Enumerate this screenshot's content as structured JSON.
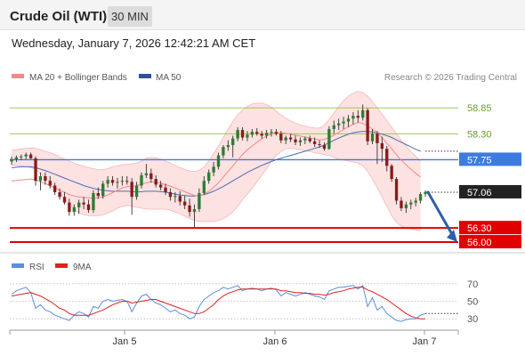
{
  "header": {
    "title": "Crude Oil (WTI)",
    "timeframe": "30 MIN"
  },
  "timestamp": "Wednesday, January 7, 2026 12:42:21 AM CET",
  "legend": {
    "items": [
      {
        "label": "MA 20 + Bollinger Bands",
        "color": "#f08a8a"
      },
      {
        "label": "MA 50",
        "color": "#2c4f9e"
      }
    ],
    "credit": "Research © 2026 Trading Central"
  },
  "colors": {
    "up": "#2e7d32",
    "down": "#8b1a1a",
    "wick": "#333333",
    "band_fill": "#fde2e2",
    "ma20": "#f08a8a",
    "ma50": "#4a6cb3",
    "resistance": "#8cc63f",
    "pivot": "#3d7be0",
    "support": "#e00000",
    "rsi": "#5b8de0",
    "rsi_ma": "#e02020",
    "arrow": "#2f5da8"
  },
  "chart_data": [
    {
      "type": "candlestick",
      "name": "price",
      "ylim": [
        55.85,
        59.25
      ],
      "x_ticks": [
        "Jan 5",
        "Jan 6",
        "Jan 7"
      ],
      "levels": [
        {
          "label": "58.85",
          "value": 58.85,
          "kind": "resistance"
        },
        {
          "label": "58.30",
          "value": 58.3,
          "kind": "resistance"
        },
        {
          "label": "57.75",
          "value": 57.75,
          "kind": "pivot"
        },
        {
          "label": "57.06",
          "value": 57.06,
          "kind": "last"
        },
        {
          "label": "56.30",
          "value": 56.3,
          "kind": "support"
        },
        {
          "label": "56.00",
          "value": 56.0,
          "kind": "support"
        }
      ],
      "ohlc": [
        [
          57.71,
          57.82,
          57.64,
          57.76
        ],
        [
          57.76,
          57.84,
          57.7,
          57.8
        ],
        [
          57.8,
          57.86,
          57.74,
          57.82
        ],
        [
          57.82,
          57.9,
          57.76,
          57.86
        ],
        [
          57.86,
          57.9,
          57.76,
          57.78
        ],
        [
          57.78,
          57.82,
          57.2,
          57.3
        ],
        [
          57.3,
          57.48,
          57.1,
          57.4
        ],
        [
          57.4,
          57.48,
          57.22,
          57.3
        ],
        [
          57.3,
          57.4,
          57.14,
          57.2
        ],
        [
          57.2,
          57.26,
          57.0,
          57.06
        ],
        [
          57.06,
          57.14,
          56.9,
          56.96
        ],
        [
          56.96,
          57.06,
          56.8,
          56.84
        ],
        [
          56.84,
          56.92,
          56.56,
          56.64
        ],
        [
          56.64,
          56.8,
          56.56,
          56.74
        ],
        [
          56.74,
          56.9,
          56.6,
          56.84
        ],
        [
          56.84,
          56.96,
          56.7,
          56.8
        ],
        [
          56.8,
          56.9,
          56.62,
          56.68
        ],
        [
          56.68,
          57.1,
          56.62,
          57.04
        ],
        [
          57.04,
          57.16,
          56.92,
          56.98
        ],
        [
          56.98,
          57.3,
          56.92,
          57.24
        ],
        [
          57.24,
          57.4,
          57.16,
          57.32
        ],
        [
          57.32,
          57.4,
          57.2,
          57.26
        ],
        [
          57.26,
          57.36,
          57.14,
          57.28
        ],
        [
          57.28,
          57.4,
          57.2,
          57.3
        ],
        [
          57.3,
          57.4,
          57.22,
          57.28
        ],
        [
          57.28,
          57.36,
          56.58,
          56.96
        ],
        [
          56.96,
          57.28,
          56.9,
          57.2
        ],
        [
          57.2,
          57.48,
          57.14,
          57.42
        ],
        [
          57.42,
          57.66,
          57.36,
          57.46
        ],
        [
          57.46,
          57.56,
          57.26,
          57.34
        ],
        [
          57.34,
          57.42,
          57.16,
          57.22
        ],
        [
          57.22,
          57.3,
          57.1,
          57.16
        ],
        [
          57.16,
          57.24,
          57.0,
          57.06
        ],
        [
          57.06,
          57.14,
          56.88,
          56.96
        ],
        [
          56.96,
          57.06,
          56.84,
          56.98
        ],
        [
          56.98,
          57.08,
          56.78,
          56.86
        ],
        [
          56.86,
          56.98,
          56.7,
          56.78
        ],
        [
          56.78,
          56.92,
          56.54,
          56.64
        ],
        [
          56.64,
          56.8,
          56.32,
          56.7
        ],
        [
          56.7,
          57.14,
          56.64,
          57.04
        ],
        [
          57.04,
          57.4,
          57.0,
          57.3
        ],
        [
          57.3,
          57.54,
          57.24,
          57.48
        ],
        [
          57.48,
          57.7,
          57.4,
          57.6
        ],
        [
          57.6,
          57.9,
          57.54,
          57.84
        ],
        [
          57.84,
          58.06,
          57.78,
          58.02
        ],
        [
          58.02,
          58.16,
          57.94,
          58.06
        ],
        [
          58.06,
          58.26,
          57.8,
          58.2
        ],
        [
          58.2,
          58.44,
          58.14,
          58.38
        ],
        [
          58.38,
          58.44,
          58.16,
          58.22
        ],
        [
          58.22,
          58.36,
          58.14,
          58.28
        ],
        [
          58.28,
          58.4,
          58.22,
          58.34
        ],
        [
          58.34,
          58.42,
          58.26,
          58.3
        ],
        [
          58.3,
          58.36,
          58.2,
          58.26
        ],
        [
          58.26,
          58.38,
          58.2,
          58.32
        ],
        [
          58.32,
          58.4,
          58.24,
          58.34
        ],
        [
          58.34,
          58.4,
          58.26,
          58.3
        ],
        [
          58.3,
          58.36,
          58.1,
          58.16
        ],
        [
          58.16,
          58.26,
          58.08,
          58.22
        ],
        [
          58.22,
          58.3,
          58.12,
          58.18
        ],
        [
          58.18,
          58.26,
          58.06,
          58.12
        ],
        [
          58.12,
          58.22,
          58.04,
          58.16
        ],
        [
          58.16,
          58.24,
          58.08,
          58.2
        ],
        [
          58.2,
          58.26,
          58.1,
          58.14
        ],
        [
          58.14,
          58.22,
          58.02,
          58.08
        ],
        [
          58.08,
          58.16,
          58.0,
          58.06
        ],
        [
          58.06,
          58.12,
          57.94,
          57.98
        ],
        [
          57.98,
          58.46,
          57.96,
          58.4
        ],
        [
          58.4,
          58.58,
          58.3,
          58.48
        ],
        [
          58.48,
          58.62,
          58.38,
          58.52
        ],
        [
          58.52,
          58.66,
          58.4,
          58.56
        ],
        [
          58.56,
          58.7,
          58.44,
          58.62
        ],
        [
          58.62,
          58.76,
          58.5,
          58.68
        ],
        [
          58.68,
          58.8,
          58.54,
          58.64
        ],
        [
          58.64,
          58.92,
          58.58,
          58.8
        ],
        [
          58.8,
          58.84,
          58.06,
          58.14
        ],
        [
          58.14,
          58.4,
          58.08,
          58.3
        ],
        [
          58.3,
          58.36,
          57.66,
          58.1
        ],
        [
          58.1,
          58.24,
          57.7,
          57.98
        ],
        [
          57.98,
          58.04,
          57.5,
          57.62
        ],
        [
          57.62,
          57.66,
          57.28,
          57.34
        ],
        [
          57.34,
          57.38,
          56.8,
          56.88
        ],
        [
          56.88,
          56.96,
          56.66,
          56.72
        ],
        [
          56.72,
          56.86,
          56.62,
          56.8
        ],
        [
          56.8,
          56.9,
          56.7,
          56.84
        ],
        [
          56.84,
          56.94,
          56.76,
          56.88
        ],
        [
          56.88,
          57.06,
          56.82,
          57.02
        ],
        [
          57.02,
          57.1,
          56.96,
          57.06
        ]
      ],
      "ma20": [
        57.3,
        57.31,
        57.32,
        57.33,
        57.34,
        57.32,
        57.28,
        57.24,
        57.2,
        57.15,
        57.1,
        57.06,
        57.01,
        56.98,
        56.96,
        56.95,
        56.94,
        56.93,
        56.94,
        56.96,
        57.0,
        57.05,
        57.1,
        57.15,
        57.18,
        57.18,
        57.2,
        57.23,
        57.26,
        57.28,
        57.27,
        57.25,
        57.22,
        57.19,
        57.15,
        57.11,
        57.07,
        57.03,
        56.99,
        56.98,
        57.02,
        57.08,
        57.16,
        57.26,
        57.38,
        57.5,
        57.62,
        57.74,
        57.86,
        57.96,
        58.04,
        58.12,
        58.19,
        58.25,
        58.3,
        58.32,
        58.32,
        58.31,
        58.29,
        58.27,
        58.25,
        58.23,
        58.21,
        58.19,
        58.17,
        58.18,
        58.22,
        58.27,
        58.33,
        58.39,
        58.45,
        58.5,
        58.54,
        58.52,
        58.47,
        58.4,
        58.32,
        58.22,
        58.1,
        57.98,
        57.85,
        57.74,
        57.64,
        57.55,
        57.46,
        57.38
      ],
      "ma50": [
        57.58,
        57.59,
        57.6,
        57.6,
        57.6,
        57.58,
        57.55,
        57.52,
        57.48,
        57.44,
        57.4,
        57.36,
        57.32,
        57.28,
        57.24,
        57.2,
        57.17,
        57.14,
        57.12,
        57.1,
        57.09,
        57.08,
        57.08,
        57.08,
        57.08,
        57.07,
        57.07,
        57.07,
        57.08,
        57.08,
        57.08,
        57.07,
        57.06,
        57.04,
        57.02,
        57.0,
        56.99,
        56.98,
        56.98,
        56.99,
        57.01,
        57.04,
        57.08,
        57.13,
        57.18,
        57.24,
        57.3,
        57.36,
        57.42,
        57.48,
        57.53,
        57.58,
        57.63,
        57.67,
        57.71,
        57.75,
        57.78,
        57.81,
        57.84,
        57.87,
        57.9,
        57.93,
        57.96,
        57.99,
        58.02,
        58.06,
        58.11,
        58.16,
        58.21,
        58.25,
        58.29,
        58.32,
        58.34,
        58.35,
        58.35,
        58.34,
        58.32,
        58.29,
        58.26,
        58.22,
        58.17,
        58.12,
        58.07,
        58.02,
        57.97,
        57.93
      ],
      "bb_upper": [
        57.95,
        57.96,
        57.98,
        57.99,
        58.0,
        57.99,
        57.96,
        57.93,
        57.9,
        57.86,
        57.81,
        57.76,
        57.72,
        57.68,
        57.64,
        57.61,
        57.58,
        57.56,
        57.54,
        57.54,
        57.56,
        57.6,
        57.62,
        57.64,
        57.65,
        57.66,
        57.68,
        57.72,
        57.78,
        57.8,
        57.79,
        57.76,
        57.72,
        57.68,
        57.63,
        57.58,
        57.54,
        57.51,
        57.5,
        57.52,
        57.6,
        57.72,
        57.88,
        58.04,
        58.22,
        58.4,
        58.56,
        58.7,
        58.8,
        58.88,
        58.93,
        58.95,
        58.95,
        58.92,
        58.86,
        58.78,
        58.7,
        58.63,
        58.57,
        58.53,
        58.49,
        58.46,
        58.44,
        58.42,
        58.42,
        58.48,
        58.6,
        58.74,
        58.88,
        59.0,
        59.1,
        59.16,
        59.2,
        59.18,
        59.1,
        58.98,
        58.85,
        58.72,
        58.58,
        58.44,
        58.3,
        58.16,
        58.04,
        57.92,
        57.82,
        57.72
      ],
      "bb_lower": [
        57.64,
        57.63,
        57.62,
        57.6,
        57.58,
        57.54,
        57.46,
        57.38,
        57.28,
        57.18,
        57.06,
        56.92,
        56.8,
        56.7,
        56.62,
        56.58,
        56.56,
        56.56,
        56.56,
        56.58,
        56.62,
        56.66,
        56.72,
        56.76,
        56.78,
        56.76,
        56.74,
        56.72,
        56.7,
        56.7,
        56.7,
        56.7,
        56.7,
        56.68,
        56.64,
        56.6,
        56.55,
        56.5,
        56.46,
        56.44,
        56.44,
        56.44,
        56.44,
        56.46,
        56.5,
        56.56,
        56.64,
        56.76,
        56.9,
        57.02,
        57.14,
        57.28,
        57.42,
        57.56,
        57.72,
        57.84,
        57.92,
        57.98,
        58.0,
        57.98,
        57.96,
        57.94,
        57.92,
        57.9,
        57.88,
        57.86,
        57.84,
        57.8,
        57.76,
        57.74,
        57.72,
        57.7,
        57.68,
        57.62,
        57.5,
        57.34,
        57.16,
        56.96,
        56.76,
        56.56,
        56.42,
        56.34,
        56.3,
        56.28,
        56.26,
        56.24
      ],
      "projection": {
        "from": 57.06,
        "to": 56.0
      }
    },
    {
      "type": "line",
      "name": "oscillator",
      "ylim": [
        20,
        80
      ],
      "y_ticks": [
        70,
        50,
        30
      ],
      "series": [
        {
          "name": "RSI",
          "values": [
            58,
            62,
            64,
            66,
            60,
            42,
            46,
            40,
            38,
            34,
            32,
            30,
            28,
            34,
            38,
            36,
            32,
            44,
            42,
            50,
            52,
            50,
            51,
            52,
            50,
            38,
            48,
            56,
            58,
            52,
            48,
            46,
            42,
            38,
            40,
            36,
            34,
            30,
            32,
            44,
            52,
            56,
            60,
            62,
            66,
            64,
            66,
            68,
            62,
            64,
            65,
            64,
            62,
            64,
            65,
            63,
            56,
            60,
            58,
            56,
            58,
            60,
            58,
            56,
            55,
            52,
            62,
            64,
            66,
            66,
            67,
            68,
            64,
            68,
            44,
            54,
            40,
            44,
            36,
            32,
            28,
            27,
            29,
            30,
            30,
            34,
            36
          ]
        },
        {
          "name": "9MA",
          "values": [
            56,
            57,
            58,
            59,
            60,
            58,
            56,
            53,
            50,
            46,
            42,
            40,
            36,
            34,
            34,
            34,
            34,
            36,
            38,
            40,
            43,
            46,
            48,
            50,
            50,
            48,
            49,
            50,
            51,
            52,
            52,
            50,
            48,
            46,
            44,
            42,
            40,
            38,
            36,
            36,
            38,
            42,
            46,
            52,
            56,
            59,
            61,
            63,
            64,
            64,
            64,
            64,
            64,
            64,
            64,
            64,
            62,
            62,
            61,
            60,
            60,
            59,
            59,
            58,
            58,
            57,
            58,
            60,
            61,
            62,
            64,
            65,
            66,
            66,
            63,
            61,
            58,
            55,
            52,
            48,
            44,
            40,
            36,
            33,
            31,
            30,
            30
          ]
        }
      ]
    }
  ]
}
